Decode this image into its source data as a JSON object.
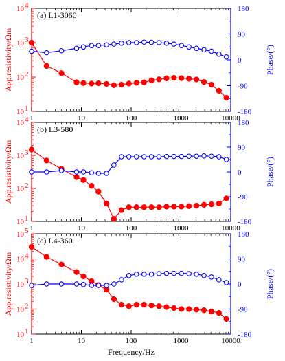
{
  "chart_data": [
    {
      "type": "line",
      "panel_label": "(a) L1-3060",
      "ylabel_left": "App.resistivity/Ωm",
      "ylabel_right": "Phase/(°)",
      "xlabel": "",
      "xscale": "log",
      "xlim": [
        1,
        10000
      ],
      "yscale_left": "log",
      "ylim_left": [
        10,
        10000
      ],
      "ylim_right": [
        -180,
        180
      ],
      "x_ticks": [
        "1",
        "10",
        "100",
        "1000",
        "10000"
      ],
      "y_left_tick_labels": [
        {
          "v": 10,
          "base": "10",
          "exp": "1"
        },
        {
          "v": 100,
          "base": "10",
          "exp": "2"
        },
        {
          "v": 1000,
          "base": "10",
          "exp": "3"
        },
        {
          "v": 10000,
          "base": "10",
          "exp": "4"
        }
      ],
      "y_right_ticks": [
        "180",
        "90",
        "0",
        "-90",
        "-180"
      ],
      "series": [
        {
          "role": "resistivity",
          "axis": "left",
          "color": "#ff0000",
          "marker": "filled-circle",
          "x": [
            1,
            2,
            4,
            8,
            11,
            16,
            22,
            32,
            45,
            64,
            90,
            128,
            181,
            256,
            362,
            512,
            724,
            1024,
            1448,
            2048,
            2896,
            4096,
            5793,
            8192
          ],
          "values": [
            1000,
            210,
            130,
            70,
            67,
            65,
            66,
            63,
            58,
            60,
            65,
            68,
            70,
            80,
            86,
            92,
            95,
            93,
            90,
            85,
            72,
            60,
            40,
            25
          ]
        },
        {
          "role": "phase",
          "axis": "right",
          "color": "#0000ff",
          "marker": "open-circle",
          "x": [
            1,
            2,
            4,
            8,
            11,
            16,
            22,
            32,
            45,
            64,
            90,
            128,
            181,
            256,
            362,
            512,
            724,
            1024,
            1448,
            2048,
            2896,
            4096,
            5793,
            8192
          ],
          "values": [
            30,
            25,
            32,
            40,
            45,
            50,
            50,
            52,
            55,
            58,
            60,
            60,
            62,
            61,
            60,
            58,
            55,
            50,
            45,
            40,
            35,
            30,
            20,
            10
          ]
        }
      ]
    },
    {
      "type": "line",
      "panel_label": "(b) L3-580",
      "ylabel_left": "App.resistivity/Ωm",
      "ylabel_right": "Phase/(°)",
      "xlabel": "",
      "xscale": "log",
      "xlim": [
        1,
        10000
      ],
      "yscale_left": "log",
      "ylim_left": [
        10,
        10000
      ],
      "ylim_right": [
        -180,
        180
      ],
      "x_ticks": [
        "1",
        "10",
        "100",
        "1000",
        "10000"
      ],
      "y_left_tick_labels": [
        {
          "v": 10,
          "base": "10",
          "exp": "1"
        },
        {
          "v": 100,
          "base": "10",
          "exp": "2"
        },
        {
          "v": 1000,
          "base": "10",
          "exp": "3"
        },
        {
          "v": 10000,
          "base": "10",
          "exp": "4"
        }
      ],
      "y_right_ticks": [
        "180",
        "90",
        "0",
        "-90",
        "-180"
      ],
      "series": [
        {
          "role": "resistivity",
          "axis": "left",
          "color": "#ff0000",
          "marker": "filled-circle",
          "x": [
            1,
            2,
            4,
            8,
            11,
            16,
            22,
            32,
            45,
            64,
            90,
            128,
            181,
            256,
            362,
            512,
            724,
            1024,
            1448,
            2048,
            2896,
            4096,
            5793,
            8192
          ],
          "values": [
            1500,
            700,
            390,
            220,
            180,
            120,
            80,
            35,
            12,
            22,
            27,
            27,
            27,
            27,
            27,
            28,
            28,
            28,
            29,
            30,
            32,
            33,
            35,
            50
          ]
        },
        {
          "role": "phase",
          "axis": "right",
          "color": "#0000ff",
          "marker": "open-circle",
          "x": [
            1,
            2,
            4,
            8,
            11,
            16,
            22,
            32,
            45,
            64,
            90,
            128,
            181,
            256,
            362,
            512,
            724,
            1024,
            1448,
            2048,
            2896,
            4096,
            5793,
            8192
          ],
          "values": [
            0,
            0,
            5,
            0,
            0,
            -3,
            -5,
            -5,
            25,
            55,
            55,
            55,
            55,
            55,
            55,
            56,
            56,
            56,
            57,
            57,
            58,
            57,
            55,
            45
          ]
        }
      ]
    },
    {
      "type": "line",
      "panel_label": "(c) L4-360",
      "ylabel_left": "App.resistivity/Ωm",
      "ylabel_right": "Phase/(°)",
      "xlabel": "Frequency/Hz",
      "xscale": "log",
      "xlim": [
        1,
        10000
      ],
      "yscale_left": "log",
      "ylim_left": [
        10,
        100000
      ],
      "ylim_right": [
        -180,
        180
      ],
      "x_ticks": [
        "1",
        "10",
        "100",
        "1000",
        "10000"
      ],
      "y_left_tick_labels": [
        {
          "v": 10,
          "base": "10",
          "exp": "1"
        },
        {
          "v": 100,
          "base": "10",
          "exp": "2"
        },
        {
          "v": 1000,
          "base": "10",
          "exp": "3"
        },
        {
          "v": 10000,
          "base": "10",
          "exp": "4"
        },
        {
          "v": 100000,
          "base": "10",
          "exp": "5"
        }
      ],
      "y_right_ticks": [
        "180",
        "90",
        "0",
        "-90",
        "-180"
      ],
      "series": [
        {
          "role": "resistivity",
          "axis": "left",
          "color": "#ff0000",
          "marker": "filled-circle",
          "x": [
            1,
            2,
            4,
            8,
            11,
            16,
            22,
            32,
            45,
            64,
            90,
            128,
            181,
            256,
            362,
            512,
            724,
            1024,
            1448,
            2048,
            2896,
            4096,
            5793,
            8192
          ],
          "values": [
            30000,
            12000,
            6000,
            3000,
            2000,
            1300,
            900,
            600,
            250,
            150,
            130,
            150,
            150,
            140,
            130,
            120,
            110,
            100,
            100,
            95,
            90,
            80,
            70,
            40
          ]
        },
        {
          "role": "phase",
          "axis": "right",
          "color": "#0000ff",
          "marker": "open-circle",
          "x": [
            1,
            2,
            4,
            8,
            11,
            16,
            22,
            32,
            45,
            64,
            90,
            128,
            181,
            256,
            362,
            512,
            724,
            1024,
            1448,
            2048,
            2896,
            4096,
            5793,
            8192
          ],
          "values": [
            -5,
            0,
            0,
            0,
            -2,
            -5,
            -5,
            -5,
            0,
            15,
            30,
            35,
            35,
            35,
            37,
            38,
            38,
            38,
            37,
            35,
            30,
            25,
            15,
            5
          ]
        }
      ]
    }
  ]
}
